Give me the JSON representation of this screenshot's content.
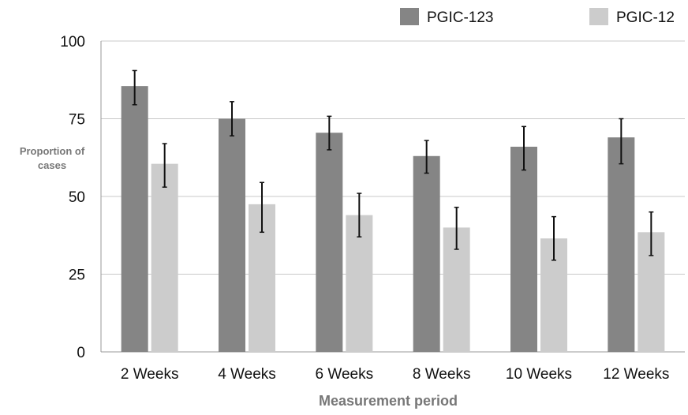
{
  "chart_data": {
    "type": "bar",
    "categories": [
      "2 Weeks",
      "4 Weeks",
      "6 Weeks",
      "8 Weeks",
      "10 Weeks",
      "12 Weeks"
    ],
    "series": [
      {
        "name": "PGIC-123",
        "color": "#858585",
        "values": [
          85.5,
          75.0,
          70.5,
          63.0,
          66.0,
          69.0
        ],
        "error_low": [
          79.5,
          69.5,
          65.0,
          57.5,
          58.5,
          60.5
        ],
        "error_high": [
          90.5,
          80.5,
          75.8,
          68.0,
          72.5,
          75.0
        ]
      },
      {
        "name": "PGIC-12",
        "color": "#cccccc",
        "values": [
          60.5,
          47.5,
          44.0,
          40.0,
          36.5,
          38.5
        ],
        "error_low": [
          53.0,
          38.5,
          37.0,
          33.0,
          29.5,
          31.0
        ],
        "error_high": [
          67.0,
          54.5,
          51.0,
          46.5,
          43.5,
          45.0
        ]
      }
    ],
    "xlabel": "Measurement period",
    "ylabel_line1": "Proportion of",
    "ylabel_line2": "cases",
    "ylim": [
      0,
      100
    ],
    "yticks": [
      "0",
      "25",
      "50",
      "75",
      "100"
    ],
    "grid": true,
    "legend_position": "top-right",
    "error_bars": true
  }
}
